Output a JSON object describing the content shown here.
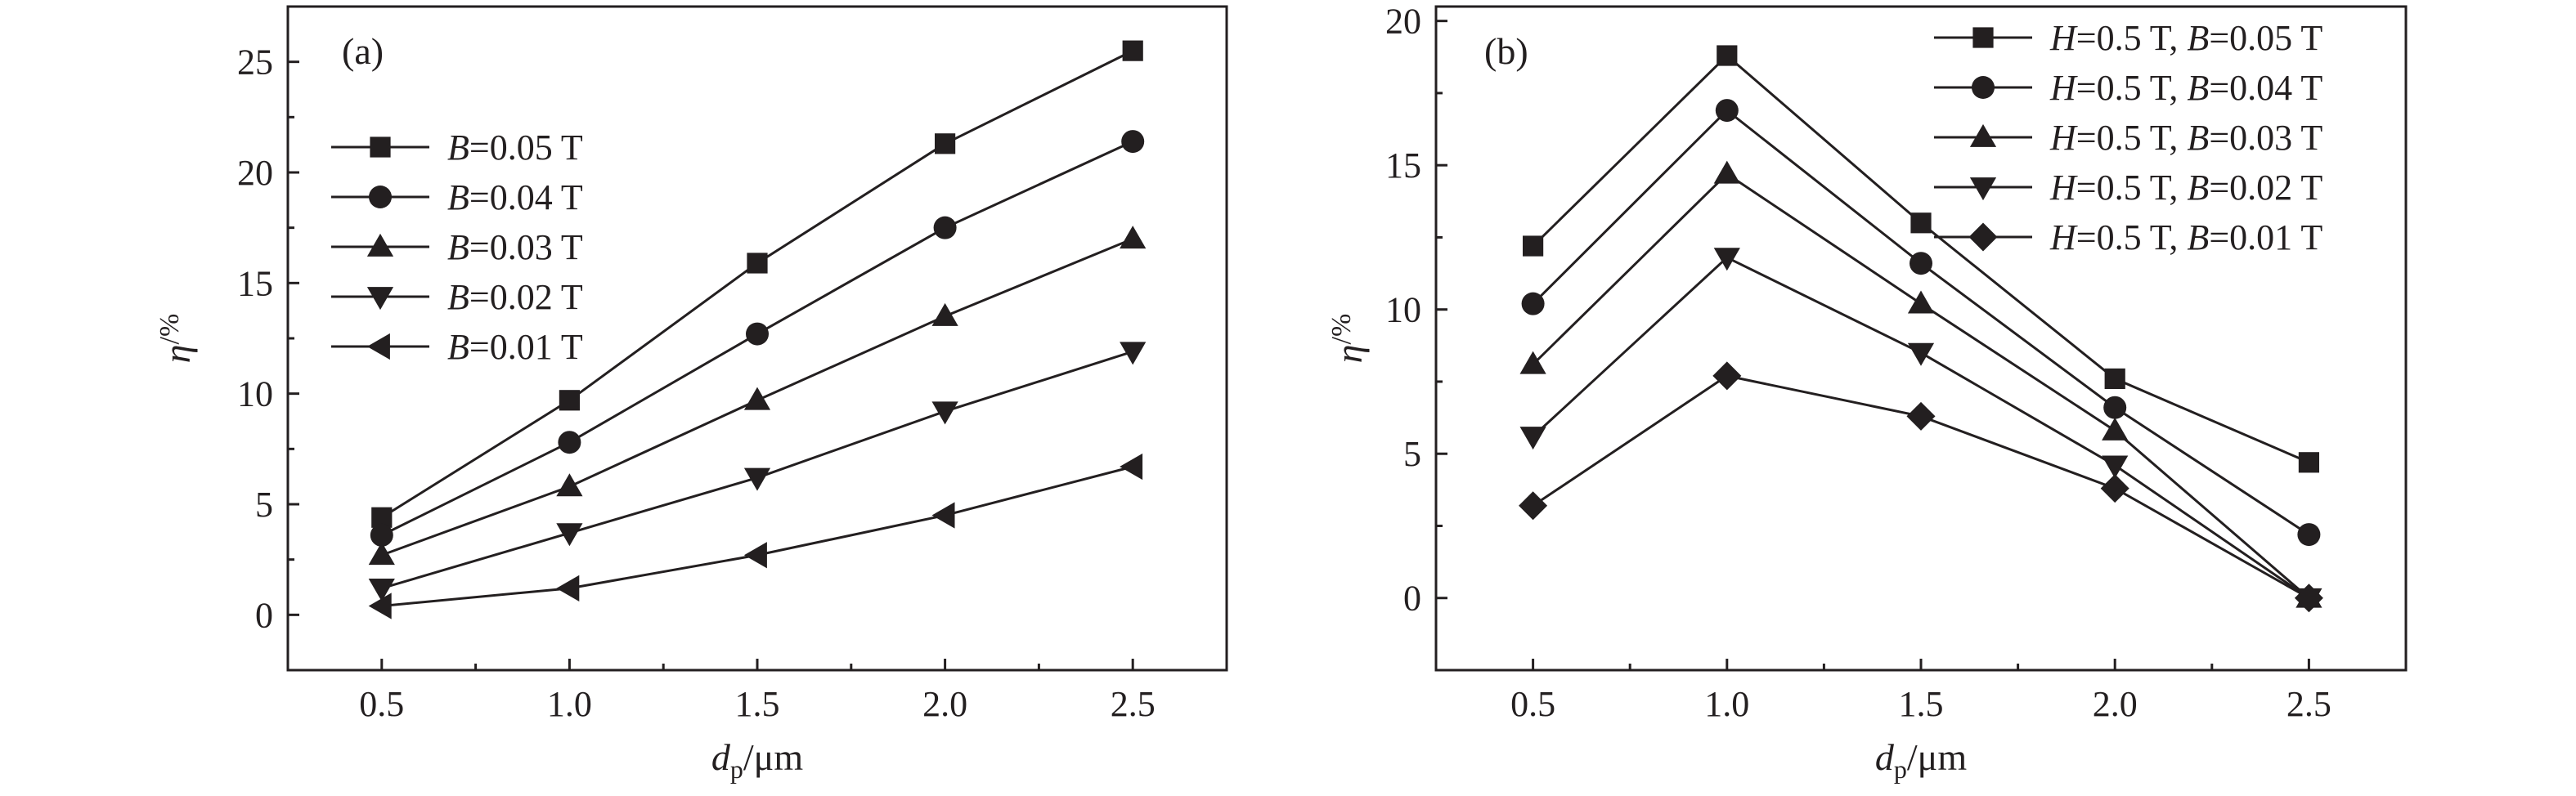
{
  "chart_data": [
    {
      "type": "line",
      "panel_label": "(a)",
      "xlabel_symbol": "d",
      "xlabel_sub": "p",
      "xlabel_unit": "/μm",
      "ylabel_symbol": "η",
      "ylabel_unit": "/%",
      "xlim": [
        0.25,
        2.75
      ],
      "ylim": [
        -2.5,
        27.5
      ],
      "x_ticks": [
        "0.5",
        "1.0",
        "1.5",
        "2.0",
        "2.5"
      ],
      "y_ticks": [
        "0",
        "5",
        "10",
        "15",
        "20",
        "25"
      ],
      "x": [
        0.5,
        1.0,
        1.5,
        2.0,
        2.5
      ],
      "legend_position": "left",
      "series": [
        {
          "name": "B=0.05 T",
          "label_parts": [
            {
              "t": "B",
              "i": true
            },
            {
              "t": "=0.05 T",
              "i": false
            }
          ],
          "marker": "square",
          "values": [
            4.4,
            9.7,
            15.9,
            21.3,
            25.5
          ]
        },
        {
          "name": "B=0.04 T",
          "label_parts": [
            {
              "t": "B",
              "i": true
            },
            {
              "t": "=0.04 T",
              "i": false
            }
          ],
          "marker": "circle",
          "values": [
            3.6,
            7.8,
            12.7,
            17.5,
            21.4
          ]
        },
        {
          "name": "B=0.03 T",
          "label_parts": [
            {
              "t": "B",
              "i": true
            },
            {
              "t": "=0.03 T",
              "i": false
            }
          ],
          "marker": "triangle-up",
          "values": [
            2.7,
            5.8,
            9.7,
            13.5,
            17.0
          ]
        },
        {
          "name": "B=0.02 T",
          "label_parts": [
            {
              "t": "B",
              "i": true
            },
            {
              "t": "=0.02 T",
              "i": false
            }
          ],
          "marker": "triangle-down",
          "values": [
            1.2,
            3.7,
            6.2,
            9.2,
            11.9
          ]
        },
        {
          "name": "B=0.01 T",
          "label_parts": [
            {
              "t": "B",
              "i": true
            },
            {
              "t": "=0.01 T",
              "i": false
            }
          ],
          "marker": "triangle-left",
          "values": [
            0.4,
            1.2,
            2.7,
            4.5,
            6.7
          ]
        }
      ]
    },
    {
      "type": "line",
      "panel_label": "(b)",
      "xlabel_symbol": "d",
      "xlabel_sub": "p",
      "xlabel_unit": "/μm",
      "ylabel_symbol": "η",
      "ylabel_unit": "/%",
      "xlim": [
        0.25,
        2.75
      ],
      "ylim": [
        -2.5,
        20.5
      ],
      "x_ticks": [
        "0.5",
        "1.0",
        "1.5",
        "2.0",
        "2.5"
      ],
      "y_ticks": [
        "0",
        "5",
        "10",
        "15",
        "20"
      ],
      "x": [
        0.5,
        1.0,
        1.5,
        2.0,
        2.5
      ],
      "legend_position": "top-right",
      "series": [
        {
          "name": "H=0.5 T, B=0.05 T",
          "label_parts": [
            {
              "t": "H",
              "i": true
            },
            {
              "t": "=0.5 T, ",
              "i": false
            },
            {
              "t": "B",
              "i": true
            },
            {
              "t": "=0.05 T",
              "i": false
            }
          ],
          "marker": "square",
          "values": [
            12.2,
            18.8,
            13.0,
            7.6,
            4.7
          ]
        },
        {
          "name": "H=0.5 T, B=0.04 T",
          "label_parts": [
            {
              "t": "H",
              "i": true
            },
            {
              "t": "=0.5 T, ",
              "i": false
            },
            {
              "t": "B",
              "i": true
            },
            {
              "t": "=0.04 T",
              "i": false
            }
          ],
          "marker": "circle",
          "values": [
            10.2,
            16.9,
            11.6,
            6.6,
            2.2
          ]
        },
        {
          "name": "H=0.5 T, B=0.03 T",
          "label_parts": [
            {
              "t": "H",
              "i": true
            },
            {
              "t": "=0.5 T, ",
              "i": false
            },
            {
              "t": "B",
              "i": true
            },
            {
              "t": "=0.03 T",
              "i": false
            }
          ],
          "marker": "triangle-up",
          "values": [
            8.1,
            14.7,
            10.2,
            5.8,
            0.0
          ]
        },
        {
          "name": "H=0.5 T, B=0.02 T",
          "label_parts": [
            {
              "t": "H",
              "i": true
            },
            {
              "t": "=0.5 T, ",
              "i": false
            },
            {
              "t": "B",
              "i": true
            },
            {
              "t": "=0.02 T",
              "i": false
            }
          ],
          "marker": "triangle-down",
          "values": [
            5.6,
            11.8,
            8.5,
            4.6,
            0.0
          ]
        },
        {
          "name": "H=0.5 T, B=0.01 T",
          "label_parts": [
            {
              "t": "H",
              "i": true
            },
            {
              "t": "=0.5 T, ",
              "i": false
            },
            {
              "t": "B",
              "i": true
            },
            {
              "t": "=0.01 T",
              "i": false
            }
          ],
          "marker": "diamond",
          "values": [
            3.2,
            7.7,
            6.3,
            3.8,
            0.0
          ]
        }
      ]
    }
  ]
}
